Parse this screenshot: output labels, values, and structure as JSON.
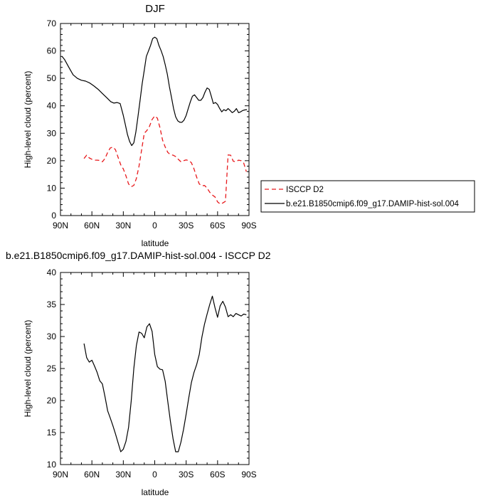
{
  "colors": {
    "obs": "#e8191c",
    "model": "#000000",
    "frame": "#000000"
  },
  "chart_data": [
    {
      "type": "line",
      "title": "DJF",
      "xlabel": "latitude",
      "ylabel": "High-level cloud (percent)",
      "xlim": [
        90,
        -90
      ],
      "ylim": [
        0,
        70
      ],
      "xticks": [
        {
          "value": 90,
          "label": "90N"
        },
        {
          "value": 60,
          "label": "60N"
        },
        {
          "value": 30,
          "label": "30N"
        },
        {
          "value": 0,
          "label": "0"
        },
        {
          "value": -30,
          "label": "30S"
        },
        {
          "value": -60,
          "label": "60S"
        },
        {
          "value": -90,
          "label": "90S"
        }
      ],
      "yticks": [
        0,
        10,
        20,
        30,
        40,
        50,
        60,
        70
      ],
      "legend": {
        "placement": "right",
        "entries": [
          {
            "label": "ISCCP D2",
            "series": 0
          },
          {
            "label": "b.e21.B1850cmip6.f09_g17.DAMIP-hist-sol.004",
            "series": 1
          }
        ]
      },
      "series": [
        {
          "name": "ISCCP D2",
          "color": "#e8191c",
          "dash": true,
          "x": [
            67.5,
            65,
            62.5,
            60,
            57.5,
            55,
            52.5,
            50,
            47.5,
            45,
            42.5,
            40,
            37.5,
            35,
            32.5,
            30,
            27.5,
            25,
            22.5,
            20,
            17.5,
            15,
            12.5,
            10,
            7.5,
            5,
            2.5,
            0,
            -2.5,
            -5,
            -7.5,
            -10,
            -12.5,
            -15,
            -17.5,
            -20,
            -22.5,
            -25,
            -27.5,
            -30,
            -32.5,
            -35,
            -37.5,
            -40,
            -42.5,
            -45,
            -47.5,
            -50,
            -52.5,
            -55,
            -57.5,
            -60,
            -62.5,
            -65,
            -67.5,
            -70,
            -72.5,
            -75,
            -77.5,
            -80,
            -82.5,
            -85,
            -87.5
          ],
          "y": [
            20.8,
            22,
            21,
            20.5,
            20.2,
            20.2,
            20.1,
            19.6,
            20.8,
            23,
            24.6,
            25,
            24,
            21.2,
            18.5,
            17,
            14.5,
            11.5,
            10.5,
            11,
            13.5,
            18,
            24,
            30,
            31,
            32.5,
            35,
            36.3,
            35.5,
            32,
            27.5,
            25,
            23,
            22.2,
            22,
            21.5,
            20.5,
            19.6,
            20,
            20.3,
            20,
            19.3,
            17,
            14,
            11.5,
            10.8,
            11,
            10,
            8.5,
            7.5,
            6.8,
            5,
            4.2,
            4.6,
            5.2,
            22.1,
            22,
            19.8,
            19.6,
            20.2,
            20,
            19.1,
            16
          ]
        },
        {
          "name": "b.e21.B1850cmip6.f09_g17.DAMIP-hist-sol.004",
          "color": "#000000",
          "dash": false,
          "x": [
            88.5,
            86,
            82,
            78,
            74,
            70,
            66,
            62,
            58,
            54,
            50,
            46,
            42,
            39,
            36,
            33,
            30,
            28,
            26,
            24,
            22,
            20,
            18,
            16,
            14,
            12,
            10,
            8,
            6,
            4,
            2,
            0,
            -2,
            -4,
            -6,
            -8,
            -10,
            -12,
            -14,
            -16,
            -18,
            -20,
            -22,
            -24,
            -26,
            -28,
            -30,
            -32,
            -34,
            -36,
            -38,
            -40,
            -42,
            -44,
            -46,
            -48,
            -50,
            -52,
            -54,
            -56,
            -58,
            -60,
            -62,
            -64,
            -66,
            -68,
            -70,
            -72,
            -74,
            -76,
            -78,
            -80,
            -82,
            -84,
            -86,
            -88
          ],
          "y": [
            58,
            56.8,
            54,
            51.3,
            50,
            49.3,
            49,
            48.3,
            47.2,
            46,
            44.5,
            43,
            41.5,
            41,
            41.2,
            40.8,
            36.5,
            33,
            29.5,
            27,
            25.5,
            26.5,
            30.5,
            36,
            42,
            48,
            53,
            58,
            60,
            62,
            64.5,
            65,
            64.5,
            62,
            60.2,
            58,
            55,
            51.5,
            47,
            43,
            39,
            36,
            34.5,
            34,
            34,
            34.8,
            36.5,
            39,
            41.5,
            43.5,
            44,
            43,
            42,
            42,
            43,
            45,
            46.5,
            46,
            43.5,
            40.8,
            41.2,
            40.5,
            39,
            37.8,
            38.6,
            38.2,
            39,
            38.3,
            37.5,
            38,
            39,
            37.5,
            37.8,
            38.3,
            38.5,
            38.6
          ]
        }
      ]
    },
    {
      "type": "line",
      "title": "b.e21.B1850cmip6.f09_g17.DAMIP-hist-sol.004 - ISCCP D2",
      "xlabel": "latitude",
      "ylabel": "High-level cloud (percent)",
      "xlim": [
        90,
        -90
      ],
      "ylim": [
        10,
        40
      ],
      "xticks": [
        {
          "value": 90,
          "label": "90N"
        },
        {
          "value": 60,
          "label": "60N"
        },
        {
          "value": 30,
          "label": "30N"
        },
        {
          "value": 0,
          "label": "0"
        },
        {
          "value": -30,
          "label": "30S"
        },
        {
          "value": -60,
          "label": "60S"
        },
        {
          "value": -90,
          "label": "90S"
        }
      ],
      "yticks": [
        10,
        15,
        20,
        25,
        30,
        35,
        40
      ],
      "series": [
        {
          "color": "#000000",
          "dash": false,
          "x": [
            67.5,
            65,
            62.5,
            60,
            57.5,
            55,
            52.5,
            50,
            47.5,
            45,
            42.5,
            40,
            37.5,
            35,
            32.5,
            30,
            27.5,
            25,
            22.5,
            20,
            17.5,
            15,
            12.5,
            10,
            7.5,
            5,
            2.5,
            0,
            -2.5,
            -5,
            -7.5,
            -10,
            -12.5,
            -15,
            -17.5,
            -20,
            -22.5,
            -25,
            -27.5,
            -30,
            -32.5,
            -35,
            -37.5,
            -40,
            -42.5,
            -45,
            -47.5,
            -50,
            -52.5,
            -55,
            -57.5,
            -60,
            -62.5,
            -65,
            -67.5,
            -70,
            -72.5,
            -75,
            -77.5,
            -80,
            -82.5,
            -85,
            -87.5
          ],
          "y": [
            28.9,
            26.7,
            26,
            26.3,
            25.4,
            24.4,
            23.1,
            22.6,
            20.6,
            18.4,
            17.3,
            16.1,
            14.8,
            13.4,
            12,
            12.4,
            13.6,
            15.8,
            19.9,
            25,
            28.6,
            30.7,
            30.5,
            29.8,
            31.5,
            32,
            30.8,
            27.2,
            25.3,
            24.9,
            24.8,
            23,
            19.8,
            16.7,
            14,
            12,
            12,
            13.5,
            15.5,
            17.9,
            20.4,
            22.8,
            24.4,
            25.6,
            27.2,
            29.9,
            31.9,
            33.5,
            35,
            36.3,
            34.5,
            33,
            34.8,
            35.5,
            34.6,
            33.1,
            33.4,
            33.1,
            33.6,
            33.4,
            33.2,
            33.5,
            33.4
          ]
        }
      ]
    }
  ]
}
